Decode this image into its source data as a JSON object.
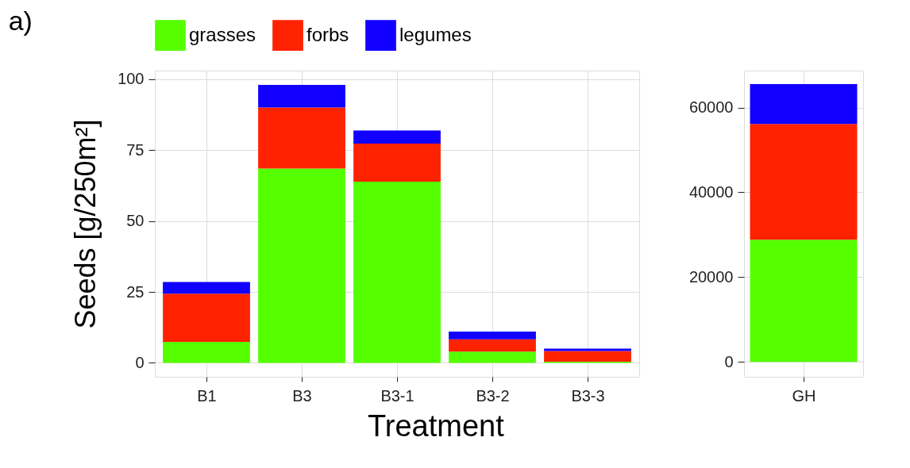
{
  "chart_data": [
    {
      "type": "bar",
      "title": "a)",
      "ylabel": "Seeds [g/250m²]",
      "xlabel": "Treatment",
      "stacked": true,
      "legend": "top",
      "grid": true,
      "categories": [
        "B1",
        "B3",
        "B3-1",
        "B3-2",
        "B3-3"
      ],
      "series": [
        {
          "name": "grasses",
          "color": "#55ff00",
          "values": [
            7.4,
            68.5,
            63.9,
            4.0,
            0.4
          ]
        },
        {
          "name": "forbs",
          "color": "#ff2200",
          "values": [
            17.0,
            21.5,
            13.4,
            4.3,
            3.8
          ]
        },
        {
          "name": "legumes",
          "color": "#1100ff",
          "values": [
            4.1,
            8.0,
            4.6,
            2.7,
            0.8
          ]
        }
      ],
      "ylim": [
        -4.9,
        103
      ],
      "yticks": [
        0,
        25,
        50,
        75,
        100
      ]
    },
    {
      "type": "bar",
      "stacked": true,
      "grid": true,
      "categories": [
        "GH"
      ],
      "series": [
        {
          "color": "#55ff00",
          "values": [
            28800
          ]
        },
        {
          "color": "#ff2200",
          "values": [
            27300
          ]
        },
        {
          "color": "#1100ff",
          "values": [
            9400
          ]
        }
      ],
      "ylim": [
        -3500,
        68700
      ],
      "yticks": [
        0,
        20000,
        40000,
        60000
      ]
    }
  ]
}
